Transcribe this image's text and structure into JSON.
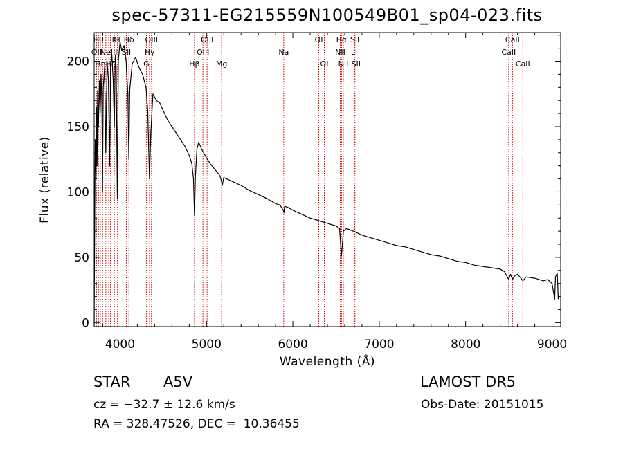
{
  "title": "spec-57311-EG215559N100549B01_sp04-023.fits",
  "info": {
    "object_class": "STAR",
    "subclass": "A5V",
    "survey": "LAMOST DR5",
    "cz": "cz = −32.7 ± 12.6 km/s",
    "obs_date": "Obs-Date: 20151015",
    "ra_dec": "RA = 328.47526, DEC =  10.36455"
  },
  "chart_data": {
    "type": "line",
    "xlabel": "Wavelength (Å)",
    "ylabel": "Flux (relative)",
    "xlim": [
      3700,
      9100
    ],
    "ylim": [
      -3,
      222
    ],
    "xticks": [
      4000,
      5000,
      6000,
      7000,
      8000,
      9000
    ],
    "yticks": [
      0,
      50,
      100,
      150,
      200
    ],
    "grid": false,
    "line_color": "#000000",
    "marker_color": "#cc0000",
    "series": [
      {
        "points": [
          [
            3700,
            -2
          ],
          [
            3705,
            60
          ],
          [
            3712,
            140
          ],
          [
            3722,
            110
          ],
          [
            3727,
            165
          ],
          [
            3734,
            120
          ],
          [
            3740,
            178
          ],
          [
            3750,
            150
          ],
          [
            3760,
            185
          ],
          [
            3770,
            160
          ],
          [
            3780,
            190
          ],
          [
            3790,
            165
          ],
          [
            3797,
            100
          ],
          [
            3805,
            180
          ],
          [
            3820,
            195
          ],
          [
            3835,
            130
          ],
          [
            3850,
            200
          ],
          [
            3865,
            185
          ],
          [
            3880,
            120
          ],
          [
            3890,
            195
          ],
          [
            3905,
            205
          ],
          [
            3920,
            185
          ],
          [
            3933,
            150
          ],
          [
            3945,
            205
          ],
          [
            3955,
            195
          ],
          [
            3968,
            95
          ],
          [
            3980,
            200
          ],
          [
            4000,
            215
          ],
          [
            4020,
            208
          ],
          [
            4045,
            212
          ],
          [
            4070,
            200
          ],
          [
            4090,
            175
          ],
          [
            4101,
            125
          ],
          [
            4112,
            178
          ],
          [
            4140,
            198
          ],
          [
            4180,
            203
          ],
          [
            4220,
            195
          ],
          [
            4260,
            190
          ],
          [
            4300,
            180
          ],
          [
            4320,
            162
          ],
          [
            4340,
            110
          ],
          [
            4355,
            145
          ],
          [
            4380,
            175
          ],
          [
            4420,
            170
          ],
          [
            4460,
            168
          ],
          [
            4500,
            162
          ],
          [
            4550,
            155
          ],
          [
            4600,
            150
          ],
          [
            4650,
            145
          ],
          [
            4700,
            140
          ],
          [
            4750,
            135
          ],
          [
            4800,
            128
          ],
          [
            4830,
            122
          ],
          [
            4850,
            110
          ],
          [
            4861,
            82
          ],
          [
            4872,
            112
          ],
          [
            4890,
            133
          ],
          [
            4910,
            138
          ],
          [
            4950,
            132
          ],
          [
            5000,
            126
          ],
          [
            5050,
            121
          ],
          [
            5100,
            117
          ],
          [
            5150,
            113
          ],
          [
            5167,
            110
          ],
          [
            5183,
            105
          ],
          [
            5200,
            111
          ],
          [
            5300,
            108
          ],
          [
            5400,
            105
          ],
          [
            5500,
            101
          ],
          [
            5600,
            98
          ],
          [
            5700,
            95
          ],
          [
            5800,
            91
          ],
          [
            5850,
            90
          ],
          [
            5890,
            86
          ],
          [
            5896,
            84
          ],
          [
            5905,
            89
          ],
          [
            5950,
            88
          ],
          [
            6000,
            86
          ],
          [
            6100,
            83
          ],
          [
            6200,
            80
          ],
          [
            6300,
            78
          ],
          [
            6400,
            76
          ],
          [
            6500,
            74
          ],
          [
            6540,
            72
          ],
          [
            6563,
            51
          ],
          [
            6585,
            70
          ],
          [
            6620,
            72
          ],
          [
            6700,
            70
          ],
          [
            6800,
            67
          ],
          [
            6900,
            65
          ],
          [
            7000,
            63
          ],
          [
            7100,
            61
          ],
          [
            7200,
            59
          ],
          [
            7300,
            58
          ],
          [
            7400,
            56
          ],
          [
            7500,
            54
          ],
          [
            7600,
            52
          ],
          [
            7700,
            51
          ],
          [
            7800,
            49
          ],
          [
            7900,
            47
          ],
          [
            8000,
            46
          ],
          [
            8100,
            44
          ],
          [
            8200,
            43
          ],
          [
            8300,
            42
          ],
          [
            8400,
            41
          ],
          [
            8450,
            39
          ],
          [
            8498,
            33
          ],
          [
            8520,
            37
          ],
          [
            8542,
            33
          ],
          [
            8570,
            36
          ],
          [
            8600,
            37
          ],
          [
            8640,
            34
          ],
          [
            8662,
            32
          ],
          [
            8700,
            35
          ],
          [
            8800,
            34
          ],
          [
            8900,
            32
          ],
          [
            8950,
            33
          ],
          [
            9000,
            30
          ],
          [
            9030,
            18
          ],
          [
            9040,
            35
          ],
          [
            9060,
            38
          ],
          [
            9072,
            18
          ]
        ]
      }
    ],
    "lines": [
      {
        "wave": 3727,
        "label": "OII",
        "row": 2
      },
      {
        "wave": 3750,
        "label": "Hθ",
        "row": 1
      },
      {
        "wave": 3771,
        "label": "Hη",
        "row": 3
      },
      {
        "wave": 3798,
        "label": "",
        "row": 0
      },
      {
        "wave": 3835,
        "label": "",
        "row": 0
      },
      {
        "wave": 3869,
        "label": "NeIII",
        "row": 2
      },
      {
        "wave": 3889,
        "label": "Hζ",
        "row": 3
      },
      {
        "wave": 3934,
        "label": "K",
        "row": 1
      },
      {
        "wave": 3970,
        "label": "H",
        "row": 1
      },
      {
        "wave": 4072,
        "label": "SII",
        "row": 2
      },
      {
        "wave": 4102,
        "label": "Hδ",
        "row": 1
      },
      {
        "wave": 4304,
        "label": "G",
        "row": 3
      },
      {
        "wave": 4341,
        "label": "Hγ",
        "row": 2
      },
      {
        "wave": 4363,
        "label": "OIII",
        "row": 1
      },
      {
        "wave": 4861,
        "label": "Hβ",
        "row": 3
      },
      {
        "wave": 4959,
        "label": "OIII",
        "row": 2
      },
      {
        "wave": 5007,
        "label": "OIII",
        "row": 1
      },
      {
        "wave": 5175,
        "label": "Mg",
        "row": 3
      },
      {
        "wave": 5894,
        "label": "Na",
        "row": 2
      },
      {
        "wave": 6300,
        "label": "OI",
        "row": 1
      },
      {
        "wave": 6364,
        "label": "OI",
        "row": 3
      },
      {
        "wave": 6548,
        "label": "NII",
        "row": 2
      },
      {
        "wave": 6563,
        "label": "Hα",
        "row": 1
      },
      {
        "wave": 6584,
        "label": "NII",
        "row": 3
      },
      {
        "wave": 6708,
        "label": "Li",
        "row": 2
      },
      {
        "wave": 6717,
        "label": "SII",
        "row": 1
      },
      {
        "wave": 6731,
        "label": "SII",
        "row": 3
      },
      {
        "wave": 8498,
        "label": "CaII",
        "row": 2
      },
      {
        "wave": 8542,
        "label": "CaII",
        "row": 1
      },
      {
        "wave": 8662,
        "label": "CaII",
        "row": 3
      }
    ]
  }
}
